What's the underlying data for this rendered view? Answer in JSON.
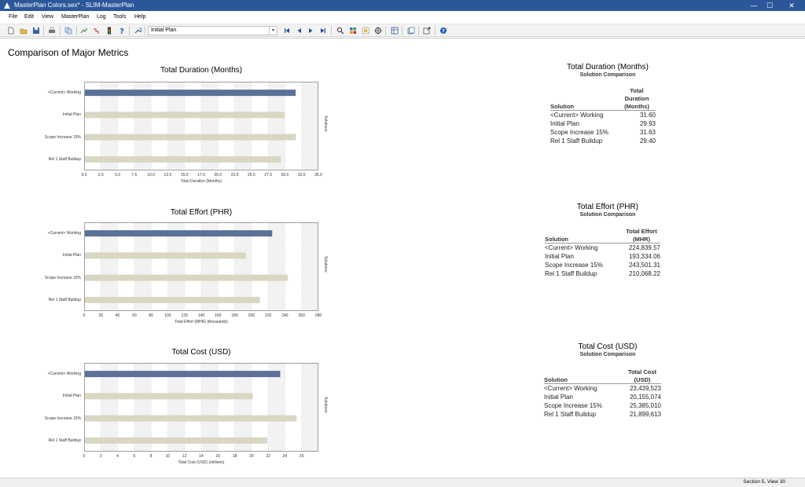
{
  "window": {
    "title": "MasterPlan Colors.sex* - SLIM-MasterPlan",
    "minimize": "—",
    "maximize": "☐",
    "close": "✕"
  },
  "menu": [
    "File",
    "Edit",
    "View",
    "MasterPlan",
    "Log",
    "Tools",
    "Help"
  ],
  "toolbar": {
    "plan_select_value": "Initial Plan",
    "icons": [
      "new-file-icon",
      "open-folder-icon",
      "save-icon",
      "print-icon",
      "copy-icon",
      "chart-line-icon",
      "chart-step-icon",
      "traffic-light-icon",
      "help-question-icon",
      "wrench-icon",
      "first-icon",
      "previous-icon",
      "next-icon",
      "last-icon",
      "zoom-icon",
      "grid-icon",
      "layout-icon",
      "target-icon",
      "table-icon",
      "pages-icon",
      "export-icon",
      "info-icon"
    ]
  },
  "page": {
    "title": "Comparison of Major Metrics"
  },
  "colors": {
    "current_bar": "#5b7197",
    "other_bar": "#d9d6c4",
    "band": "#eeeeee"
  },
  "chart_data": [
    {
      "type": "bar",
      "orientation": "horizontal",
      "title": "Total Duration (Months)",
      "xlabel": "Total Duration (Months)",
      "side_label": "Solutions",
      "categories": [
        "<Current> Working",
        "Initial Plan",
        "Scope Increase 15%",
        "Rel 1 Staff Buildup"
      ],
      "values": [
        31.6,
        29.93,
        31.63,
        29.4
      ],
      "xlim": [
        0,
        35
      ],
      "ticks": [
        "0.0",
        "2.5",
        "5.0",
        "7.5",
        "10.0",
        "12.5",
        "15.0",
        "17.5",
        "20.0",
        "22.5",
        "25.0",
        "27.5",
        "30.0",
        "32.5",
        "35.0"
      ],
      "tick_values": [
        0,
        2.5,
        5,
        7.5,
        10,
        12.5,
        15,
        17.5,
        20,
        22.5,
        25,
        27.5,
        30,
        32.5,
        35
      ]
    },
    {
      "type": "bar",
      "orientation": "horizontal",
      "title": "Total Effort (PHR)",
      "xlabel": "Total Effort (MHR) (thousands)",
      "side_label": "Solutions",
      "categories": [
        "<Current> Working",
        "Initial Plan",
        "Scope Increase 15%",
        "Rel 1 Staff Buildup"
      ],
      "values": [
        224.84,
        193.33,
        243.5,
        210.07
      ],
      "xlim": [
        0,
        280
      ],
      "ticks": [
        "0",
        "20",
        "40",
        "60",
        "80",
        "100",
        "120",
        "140",
        "160",
        "180",
        "200",
        "220",
        "240",
        "260",
        "280"
      ],
      "tick_values": [
        0,
        20,
        40,
        60,
        80,
        100,
        120,
        140,
        160,
        180,
        200,
        220,
        240,
        260,
        280
      ]
    },
    {
      "type": "bar",
      "orientation": "horizontal",
      "title": "Total Cost (USD)",
      "xlabel": "Total Cost (USD) (millions)",
      "side_label": "Solutions",
      "categories": [
        "<Current> Working",
        "Initial Plan",
        "Scope Increase 15%",
        "Rel 1 Staff Buildup"
      ],
      "values": [
        23.44,
        20.16,
        25.39,
        21.9
      ],
      "xlim": [
        0,
        28
      ],
      "ticks": [
        "0",
        "2",
        "4",
        "6",
        "8",
        "10",
        "12",
        "14",
        "16",
        "18",
        "20",
        "22",
        "24",
        "26"
      ],
      "tick_values": [
        0,
        2,
        4,
        6,
        8,
        10,
        12,
        14,
        16,
        18,
        20,
        22,
        24,
        26
      ]
    }
  ],
  "tables": [
    {
      "title": "Total Duration (Months)",
      "subtitle": "Solution Comparison",
      "col1": "Solution",
      "col2": [
        "Total",
        "Duration",
        "(Months)"
      ],
      "rows": [
        [
          "<Current> Working",
          "31.60"
        ],
        [
          "Initial Plan",
          "29.93"
        ],
        [
          "Scope Increase 15%",
          "31.63"
        ],
        [
          "Rel 1 Staff Buildup",
          "29.40"
        ]
      ]
    },
    {
      "title": "Total Effort (PHR)",
      "subtitle": "Solution Comparison",
      "col1": "Solution",
      "col2": [
        "Total Effort",
        "(MHR)"
      ],
      "rows": [
        [
          "<Current> Working",
          "224,839.57"
        ],
        [
          "Initial Plan",
          "193,334.06"
        ],
        [
          "Scope Increase 15%",
          "243,501.31"
        ],
        [
          "Rel 1 Staff Buildup",
          "210,068.22"
        ]
      ]
    },
    {
      "title": "Total Cost (USD)",
      "subtitle": "Solution Comparison",
      "col1": "Solution",
      "col2": [
        "Total Cost",
        "(USD)"
      ],
      "rows": [
        [
          "<Current> Working",
          "23,439,523"
        ],
        [
          "Initial Plan",
          "20,155,074"
        ],
        [
          "Scope Increase 15%",
          "25,385,010"
        ],
        [
          "Rel 1 Staff Buildup",
          "21,899,613"
        ]
      ]
    }
  ],
  "status": {
    "text": "Section 5, View 30"
  }
}
